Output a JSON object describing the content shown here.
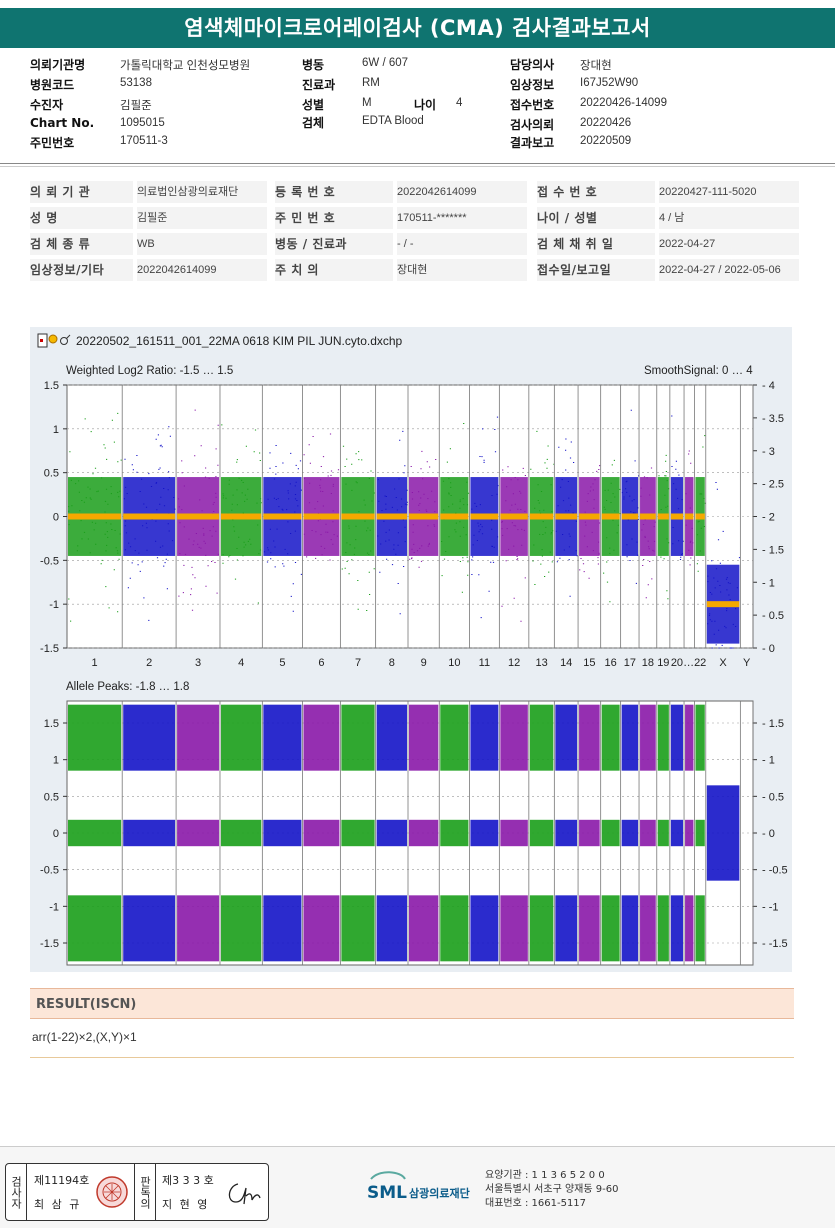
{
  "title": "염색체마이크로어레이검사 (CMA) 검사결과보고서",
  "header": {
    "left": [
      {
        "label": "의뢰기관명",
        "value": "가톨릭대학교 인천성모병원"
      },
      {
        "label": "병원코드",
        "value": "53138"
      },
      {
        "label": "수진자",
        "value": "김필준"
      },
      {
        "label": "Chart No.",
        "value": "1095015"
      },
      {
        "label": "주민번호",
        "value": "170511-3"
      }
    ],
    "mid": [
      {
        "label": "병동",
        "value": "6W / 607"
      },
      {
        "label": "진료과",
        "value": "RM"
      },
      {
        "label": "성별",
        "value": "M"
      },
      {
        "label": "검체",
        "value": "EDTA Blood"
      }
    ],
    "age": {
      "label": "나이",
      "value": "4"
    },
    "right": [
      {
        "label": "담당의사",
        "value": "장대현"
      },
      {
        "label": "임상정보",
        "value": "I67J52W90"
      },
      {
        "label": "접수번호",
        "value": "20220426-14099"
      },
      {
        "label": "검사의뢰",
        "value": "20220426"
      },
      {
        "label": "결과보고",
        "value": "20220509"
      }
    ]
  },
  "info": {
    "col1": [
      {
        "label": "의 뢰 기 관",
        "value": "의료법인삼광의료재단"
      },
      {
        "label": "성 명",
        "value": "김필준"
      },
      {
        "label": "검 체 종 류",
        "value": "WB"
      },
      {
        "label": "임상정보/기타",
        "value": "2022042614099"
      }
    ],
    "col2": [
      {
        "label": "등 록 번 호",
        "value": "2022042614099"
      },
      {
        "label": "주 민 번 호",
        "value": "170511-*******"
      },
      {
        "label": "병동 / 진료과",
        "value": "- / -"
      },
      {
        "label": "주 치 의",
        "value": "장대현"
      }
    ],
    "col3": [
      {
        "label": "접 수 번 호",
        "value": "20220427-111-5020"
      },
      {
        "label": "나이 / 성별",
        "value": "4 / 남"
      },
      {
        "label": "검 체 채 취 일",
        "value": "2022-04-27"
      },
      {
        "label": "접수일/보고일",
        "value": "2022-04-27 / 2022-05-06"
      }
    ]
  },
  "chart_data": {
    "type": "scatter",
    "title": "20220502_161511_001_22MA 0618 KIM PIL JUN.cyto.dxchp",
    "panels": [
      {
        "name": "Weighted Log2 Ratio",
        "label": "Weighted Log2 Ratio: -1.5 … 1.5",
        "right_label": "SmoothSignal: 0 … 4",
        "ylim": [
          -1.5,
          1.5
        ],
        "y_ticks": [
          "1.5",
          "1",
          "0.5",
          "0",
          "-0.5",
          "-1",
          "-1.5"
        ],
        "right_ylim": [
          0,
          4
        ],
        "right_ticks": [
          "4",
          "3.5",
          "3",
          "2.5",
          "2",
          "1.5",
          "1",
          "0.5",
          "0"
        ],
        "smooth_signal": {
          "autosomes": 2,
          "X": 1,
          "Y": 1
        }
      },
      {
        "name": "Allele Peaks",
        "label": "Allele Peaks: -1.8 … 1.8",
        "ylim": [
          -1.8,
          1.8
        ],
        "y_ticks": [
          "1.5",
          "1",
          "0.5",
          "0",
          "-0.5",
          "-1",
          "-1.5"
        ],
        "bands_autosome": [
          1.5,
          1.0,
          0,
          -1.0,
          -1.5
        ],
        "bands_X": [
          0.5,
          -0.5
        ]
      }
    ],
    "chromosomes": [
      "1",
      "2",
      "3",
      "4",
      "5",
      "6",
      "7",
      "8",
      "9",
      "10",
      "11",
      "12",
      "13",
      "14",
      "15",
      "16",
      "17",
      "18",
      "19",
      "20",
      "21",
      "22",
      "X",
      "Y"
    ],
    "x_tick_labels": [
      "1",
      "2",
      "3",
      "4",
      "5",
      "6",
      "7",
      "8",
      "9",
      "10",
      "11",
      "12",
      "13",
      "14",
      "15",
      "16",
      "17",
      "18",
      "19",
      "20",
      "…22",
      "X",
      "Y"
    ],
    "relative_sizes": [
      249,
      243,
      198,
      191,
      181,
      171,
      159,
      146,
      141,
      136,
      135,
      133,
      115,
      107,
      102,
      90,
      83,
      80,
      59,
      64,
      47,
      51,
      156,
      57
    ],
    "series_colors": [
      "#1a9e1a",
      "#1414c8",
      "#8a18a8"
    ]
  },
  "result": {
    "heading": "RESULT(ISCN)",
    "iscn": "arr(1-22)×2,(X,Y)×1"
  },
  "footer": {
    "inspector_label": "검사자",
    "inspector_no": "제11194호",
    "inspector_name": "최 삼 규",
    "reviewer_label": "판독의",
    "reviewer_no": "제3 3 3 호",
    "reviewer_name": "지 현 영",
    "org_logo": "SML",
    "org_name": "삼광의료재단",
    "org_code": "요양기관 : 1 1 3 6 5 2 0 0",
    "org_address": "서울특별시 서초구 양재동 9-60",
    "org_phone": "대표번호 : 1661-5117"
  }
}
